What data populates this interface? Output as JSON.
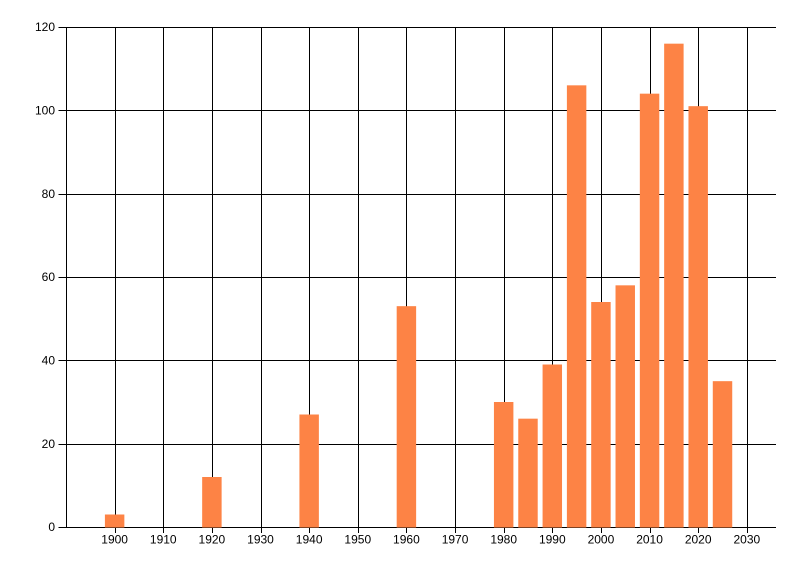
{
  "figure": {
    "title": "",
    "background": "#ffffff"
  },
  "chart_data": {
    "type": "bar",
    "title": "",
    "xlabel": "",
    "ylabel": "",
    "x": [
      1900,
      1920,
      1940,
      1960,
      1980,
      1985,
      1990,
      1995,
      2000,
      2005,
      2010,
      2015,
      2020,
      2025
    ],
    "values": [
      3,
      12,
      27,
      53,
      30,
      26,
      39,
      106,
      54,
      58,
      104,
      116,
      101,
      35
    ],
    "x_ticks": [
      1900,
      1910,
      1920,
      1930,
      1940,
      1950,
      1960,
      1970,
      1980,
      1990,
      2000,
      2010,
      2020,
      2030
    ],
    "y_ticks": [
      0,
      20,
      40,
      60,
      80,
      100,
      120
    ],
    "xlim": [
      1890,
      2036
    ],
    "ylim": [
      0,
      120
    ],
    "bar_width_years": 4,
    "grid": true,
    "legend": "none",
    "colors": {
      "bar": "#fd8345",
      "grid": "#000000",
      "axis": "#000000",
      "text": "#000000",
      "background": "#ffffff"
    }
  }
}
